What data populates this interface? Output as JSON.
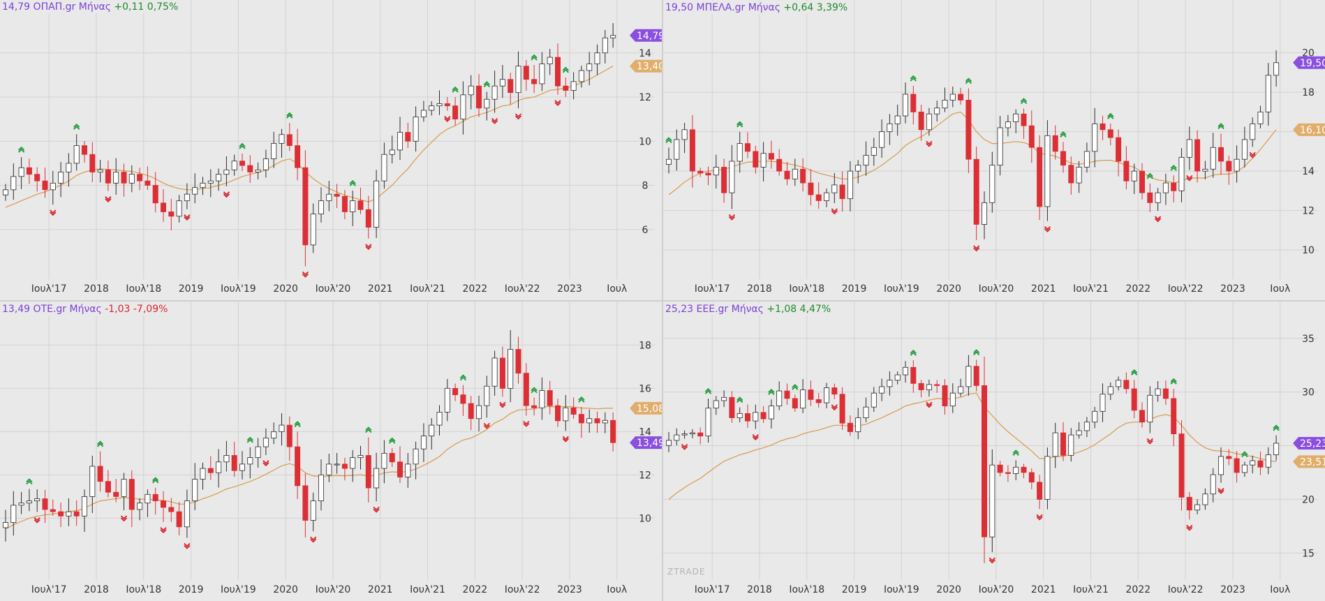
{
  "colors": {
    "up_fill": "#ffffff",
    "down_fill": "#dc2f35",
    "candle_outline": "#2a2a2a",
    "wick_down": "#d83038",
    "ma_line": "#d89a4a",
    "price_badge": "#8a4fe0",
    "ma_badge": "#e0ad6b",
    "signal_up": "#1f9a3a",
    "signal_down": "#d8242b",
    "grid": "#d2d2d2",
    "background": "#e9e9e9"
  },
  "watermark": "ZTRADE",
  "chart_data": [
    {
      "type": "candlestick",
      "panel": "top-left",
      "header": {
        "price": "14,79",
        "symbol": "ΟΠΑΠ.gr",
        "interval": "Μήνας",
        "change": "+0,11",
        "change_pct": "0,75%",
        "direction": "up"
      },
      "x_labels": [
        {
          "i": 6,
          "label": "Ιουλ'17"
        },
        {
          "i": 12,
          "label": "2018"
        },
        {
          "i": 18,
          "label": "Ιουλ'18"
        },
        {
          "i": 24,
          "label": "2019"
        },
        {
          "i": 30,
          "label": "Ιουλ'19"
        },
        {
          "i": 36,
          "label": "2020"
        },
        {
          "i": 42,
          "label": "Ιουλ'20"
        },
        {
          "i": 48,
          "label": "2021"
        },
        {
          "i": 54,
          "label": "Ιουλ'21"
        },
        {
          "i": 60,
          "label": "2022"
        },
        {
          "i": 66,
          "label": "Ιουλ'22"
        },
        {
          "i": 72,
          "label": "2023"
        },
        {
          "i": 78,
          "label": "Ιουλ"
        }
      ],
      "y_ticks": [
        6,
        8,
        10,
        12,
        14
      ],
      "ylim": [
        4.0,
        15.7
      ],
      "last_price_label": "14,79",
      "ma_label": "13,40",
      "closes": [
        7.8,
        8.4,
        8.8,
        8.5,
        8.2,
        7.8,
        8.1,
        8.6,
        9.0,
        9.8,
        9.4,
        8.6,
        8.7,
        8.1,
        8.6,
        8.1,
        8.5,
        8.2,
        8.0,
        7.2,
        6.8,
        6.6,
        7.3,
        7.6,
        7.9,
        8.1,
        8.2,
        8.5,
        8.7,
        9.1,
        8.9,
        8.6,
        8.7,
        9.2,
        9.9,
        10.3,
        9.8,
        8.8,
        5.3,
        6.7,
        7.3,
        7.6,
        7.5,
        6.8,
        7.3,
        6.9,
        6.1,
        8.2,
        9.4,
        9.6,
        10.4,
        10.0,
        11.1,
        11.4,
        11.6,
        11.7,
        11.6,
        11.0,
        12.1,
        12.5,
        11.5,
        11.9,
        12.5,
        12.8,
        12.2,
        13.4,
        12.8,
        12.6,
        13.5,
        13.8,
        12.5,
        12.3,
        12.7,
        13.2,
        13.5,
        14.0,
        14.68,
        14.79
      ],
      "ma": [
        7.0,
        7.15,
        7.3,
        7.45,
        7.6,
        7.7,
        7.85,
        8.0,
        8.2,
        8.45,
        8.6,
        8.7,
        8.75,
        8.72,
        8.7,
        8.66,
        8.63,
        8.55,
        8.45,
        8.3,
        8.1,
        7.95,
        7.85,
        7.8,
        7.8,
        7.85,
        7.9,
        8.0,
        8.1,
        8.25,
        8.4,
        8.5,
        8.58,
        8.7,
        8.9,
        9.1,
        9.2,
        9.0,
        8.6,
        8.3,
        8.05,
        7.85,
        7.7,
        7.55,
        7.45,
        7.35,
        7.25,
        7.4,
        7.7,
        8.0,
        8.4,
        8.75,
        9.2,
        9.6,
        9.95,
        10.3,
        10.55,
        10.7,
        10.9,
        11.1,
        11.2,
        11.3,
        11.45,
        11.6,
        11.65,
        11.85,
        11.95,
        12.0,
        12.15,
        12.3,
        12.35,
        12.4,
        12.5,
        12.65,
        12.8,
        13.0,
        13.2,
        13.4
      ],
      "signals_up": [
        2,
        9,
        30,
        36,
        44,
        57,
        61,
        67,
        71
      ],
      "signals_down": [
        6,
        13,
        23,
        28,
        38,
        46,
        56,
        62,
        65,
        70
      ]
    },
    {
      "type": "candlestick",
      "panel": "top-right",
      "header": {
        "price": "19,50",
        "symbol": "ΜΠΕΛΑ.gr",
        "interval": "Μήνας",
        "change": "+0,64",
        "change_pct": "3,39%",
        "direction": "up"
      },
      "x_labels": [
        {
          "i": 6,
          "label": "Ιουλ'17"
        },
        {
          "i": 12,
          "label": "2018"
        },
        {
          "i": 18,
          "label": "Ιουλ'18"
        },
        {
          "i": 24,
          "label": "2019"
        },
        {
          "i": 30,
          "label": "Ιουλ'19"
        },
        {
          "i": 36,
          "label": "2020"
        },
        {
          "i": 42,
          "label": "Ιουλ'20"
        },
        {
          "i": 48,
          "label": "2021"
        },
        {
          "i": 54,
          "label": "Ιουλ'21"
        },
        {
          "i": 60,
          "label": "2022"
        },
        {
          "i": 66,
          "label": "Ιουλ'22"
        },
        {
          "i": 72,
          "label": "2023"
        },
        {
          "i": 78,
          "label": "Ιουλ"
        }
      ],
      "y_ticks": [
        10,
        12,
        14,
        16,
        18,
        20
      ],
      "ylim": [
        8.8,
        21.9
      ],
      "last_price_label": "19,50",
      "ma_label": "16,10",
      "closes": [
        14.6,
        15.6,
        16.1,
        14.0,
        13.9,
        13.8,
        14.2,
        12.9,
        14.5,
        15.4,
        15.0,
        14.2,
        14.9,
        14.6,
        14.0,
        13.6,
        14.1,
        13.4,
        12.8,
        12.5,
        12.9,
        13.3,
        12.6,
        14.0,
        14.3,
        14.8,
        15.2,
        16.0,
        16.4,
        16.8,
        17.9,
        17.0,
        16.1,
        16.9,
        17.2,
        17.6,
        17.9,
        17.6,
        14.6,
        11.3,
        12.4,
        14.3,
        16.2,
        16.5,
        16.9,
        16.3,
        15.2,
        12.2,
        15.8,
        15.0,
        14.3,
        13.4,
        14.2,
        15.0,
        16.4,
        16.1,
        15.7,
        14.5,
        13.5,
        14.0,
        12.9,
        12.4,
        12.9,
        13.4,
        13.0,
        14.7,
        15.6,
        14.0,
        14.1,
        15.2,
        14.5,
        14.0,
        14.6,
        15.6,
        16.4,
        17.0,
        18.86,
        19.5
      ],
      "ma": [
        12.8,
        13.1,
        13.45,
        13.7,
        13.9,
        14.0,
        14.05,
        14.1,
        14.2,
        14.35,
        14.45,
        14.48,
        14.5,
        14.5,
        14.45,
        14.38,
        14.3,
        14.2,
        14.05,
        13.9,
        13.8,
        13.7,
        13.6,
        13.6,
        13.7,
        13.85,
        14.05,
        14.3,
        14.6,
        14.9,
        15.3,
        15.55,
        15.75,
        16.0,
        16.3,
        16.6,
        16.9,
        17.0,
        16.6,
        16.0,
        15.6,
        15.4,
        15.4,
        15.45,
        15.5,
        15.45,
        15.3,
        14.9,
        14.85,
        14.75,
        14.6,
        14.4,
        14.35,
        14.4,
        14.5,
        14.55,
        14.55,
        14.45,
        14.3,
        14.2,
        13.95,
        13.7,
        13.55,
        13.5,
        13.4,
        13.5,
        13.65,
        13.65,
        13.65,
        13.8,
        13.85,
        13.85,
        13.95,
        14.25,
        14.65,
        15.1,
        15.6,
        16.1
      ],
      "signals_up": [
        0,
        9,
        31,
        38,
        45,
        50,
        56,
        61,
        64,
        70
      ],
      "signals_down": [
        8,
        21,
        33,
        39,
        48,
        62,
        66,
        74
      ]
    },
    {
      "type": "candlestick",
      "panel": "bottom-left",
      "header": {
        "price": "13,49",
        "symbol": "ΟΤΕ.gr",
        "interval": "Μήνας",
        "change": "-1,03",
        "change_pct": "-7,09%",
        "direction": "down"
      },
      "x_labels": [
        {
          "i": 6,
          "label": "Ιουλ'17"
        },
        {
          "i": 12,
          "label": "2018"
        },
        {
          "i": 18,
          "label": "Ιουλ'18"
        },
        {
          "i": 24,
          "label": "2019"
        },
        {
          "i": 30,
          "label": "Ιουλ'19"
        },
        {
          "i": 36,
          "label": "2020"
        },
        {
          "i": 42,
          "label": "Ιουλ'20"
        },
        {
          "i": 48,
          "label": "2021"
        },
        {
          "i": 54,
          "label": "Ιουλ'21"
        },
        {
          "i": 60,
          "label": "2022"
        },
        {
          "i": 66,
          "label": "Ιουλ'22"
        },
        {
          "i": 72,
          "label": "2023"
        },
        {
          "i": 78,
          "label": "Ιουλ"
        }
      ],
      "y_ticks": [
        10,
        12,
        14,
        16,
        18
      ],
      "ylim": [
        7.4,
        19.3
      ],
      "last_price_label": "13,49",
      "ma_label": "15,08",
      "closes": [
        9.8,
        10.6,
        10.7,
        10.8,
        10.9,
        10.4,
        10.3,
        10.1,
        10.3,
        10.1,
        11.0,
        12.4,
        11.7,
        11.2,
        11.0,
        11.8,
        10.4,
        10.7,
        11.1,
        10.8,
        10.5,
        10.3,
        9.6,
        10.8,
        11.8,
        12.3,
        12.1,
        12.6,
        12.9,
        12.2,
        12.5,
        12.8,
        13.3,
        13.7,
        14.0,
        14.3,
        13.3,
        11.5,
        9.9,
        10.8,
        12.0,
        12.5,
        12.5,
        12.3,
        12.8,
        12.9,
        11.4,
        12.3,
        13.0,
        12.6,
        11.9,
        12.5,
        13.2,
        13.8,
        14.3,
        14.9,
        16.0,
        15.7,
        15.3,
        14.6,
        15.2,
        16.1,
        17.4,
        16.0,
        17.8,
        16.7,
        15.2,
        15.1,
        15.9,
        15.2,
        14.5,
        15.1,
        14.8,
        14.4,
        14.6,
        14.4,
        14.52,
        13.49
      ],
      "ma": [
        9.5,
        9.7,
        9.85,
        10.0,
        10.1,
        10.15,
        10.2,
        10.25,
        10.3,
        10.35,
        10.45,
        10.65,
        10.8,
        10.85,
        10.9,
        10.95,
        10.92,
        10.88,
        10.88,
        10.85,
        10.82,
        10.76,
        10.65,
        10.65,
        10.75,
        10.9,
        11.02,
        11.17,
        11.35,
        11.45,
        11.57,
        11.7,
        11.85,
        12.03,
        12.22,
        12.42,
        12.52,
        12.4,
        12.1,
        11.95,
        11.92,
        11.95,
        11.97,
        11.96,
        11.98,
        12.01,
        11.95,
        11.98,
        12.1,
        12.14,
        12.12,
        12.16,
        12.27,
        12.44,
        12.63,
        12.85,
        13.18,
        13.42,
        13.61,
        13.7,
        13.88,
        14.1,
        14.4,
        14.57,
        14.84,
        15.0,
        15.02,
        15.05,
        15.15,
        15.16,
        15.13,
        15.16,
        15.14,
        15.09,
        15.08,
        15.05,
        15.08,
        15.08
      ],
      "signals_up": [
        3,
        12,
        19,
        31,
        37,
        46,
        49,
        58,
        67,
        73
      ],
      "signals_down": [
        4,
        15,
        20,
        23,
        33,
        39,
        47,
        61,
        63,
        66,
        71
      ]
    },
    {
      "type": "candlestick",
      "panel": "bottom-right",
      "header": {
        "price": "25,23",
        "symbol": "ΕΕΕ.gr",
        "interval": "Μήνας",
        "change": "+1,08",
        "change_pct": "4,47%",
        "direction": "up"
      },
      "x_labels": [
        {
          "i": 6,
          "label": "Ιουλ'17"
        },
        {
          "i": 12,
          "label": "2018"
        },
        {
          "i": 18,
          "label": "Ιουλ'18"
        },
        {
          "i": 24,
          "label": "2019"
        },
        {
          "i": 30,
          "label": "Ιουλ'19"
        },
        {
          "i": 36,
          "label": "2020"
        },
        {
          "i": 42,
          "label": "Ιουλ'20"
        },
        {
          "i": 48,
          "label": "2021"
        },
        {
          "i": 54,
          "label": "Ιουλ'21"
        },
        {
          "i": 60,
          "label": "2022"
        },
        {
          "i": 66,
          "label": "Ιουλ'22"
        },
        {
          "i": 72,
          "label": "2023"
        },
        {
          "i": 78,
          "label": "Ιουλ"
        }
      ],
      "y_ticks": [
        15,
        20,
        25,
        30,
        35
      ],
      "ylim": [
        13.0,
        37.0
      ],
      "last_price_label": "25,23",
      "ma_label": "23,51",
      "closes": [
        25.5,
        26.0,
        26.1,
        26.2,
        25.9,
        28.5,
        29.2,
        29.5,
        27.6,
        28.0,
        27.3,
        28.1,
        27.5,
        28.7,
        30.1,
        29.4,
        28.5,
        30.2,
        29.3,
        29.0,
        30.4,
        29.8,
        27.1,
        26.3,
        27.6,
        28.6,
        29.9,
        30.5,
        31.1,
        31.6,
        32.3,
        30.8,
        30.2,
        30.7,
        30.6,
        28.7,
        29.9,
        30.5,
        32.4,
        30.6,
        16.5,
        23.2,
        22.5,
        22.4,
        23.0,
        22.5,
        21.6,
        20.0,
        24.0,
        26.2,
        24.1,
        26.0,
        26.4,
        27.2,
        28.2,
        29.8,
        30.5,
        31.1,
        30.3,
        28.3,
        27.2,
        29.7,
        30.3,
        29.4,
        26.1,
        20.2,
        19.0,
        19.5,
        20.5,
        22.3,
        24.0,
        23.8,
        22.5,
        23.2,
        23.6,
        23.0,
        24.15,
        25.23
      ],
      "ma": [
        20.0,
        20.6,
        21.1,
        21.55,
        21.95,
        22.5,
        23.05,
        23.55,
        23.85,
        24.15,
        24.35,
        24.6,
        24.8,
        25.05,
        25.4,
        25.65,
        25.8,
        26.1,
        26.3,
        26.45,
        26.7,
        26.9,
        26.9,
        26.8,
        26.85,
        27.0,
        27.3,
        27.6,
        27.95,
        28.3,
        28.7,
        28.9,
        29.05,
        29.25,
        29.4,
        29.35,
        29.4,
        29.5,
        29.8,
        29.9,
        28.6,
        27.8,
        27.0,
        26.3,
        25.7,
        25.1,
        24.5,
        23.8,
        23.8,
        24.0,
        24.0,
        24.2,
        24.4,
        24.7,
        25.1,
        25.6,
        26.1,
        26.7,
        27.1,
        27.2,
        27.2,
        27.45,
        27.75,
        27.9,
        27.7,
        26.9,
        26.0,
        25.3,
        24.8,
        24.55,
        24.5,
        24.45,
        24.25,
        24.1,
        24.0,
        23.8,
        23.6,
        23.51
      ],
      "signals_up": [
        5,
        9,
        13,
        16,
        31,
        39,
        44,
        59,
        64,
        73,
        77
      ],
      "signals_down": [
        2,
        11,
        21,
        33,
        41,
        47,
        61,
        66,
        70
      ]
    }
  ]
}
